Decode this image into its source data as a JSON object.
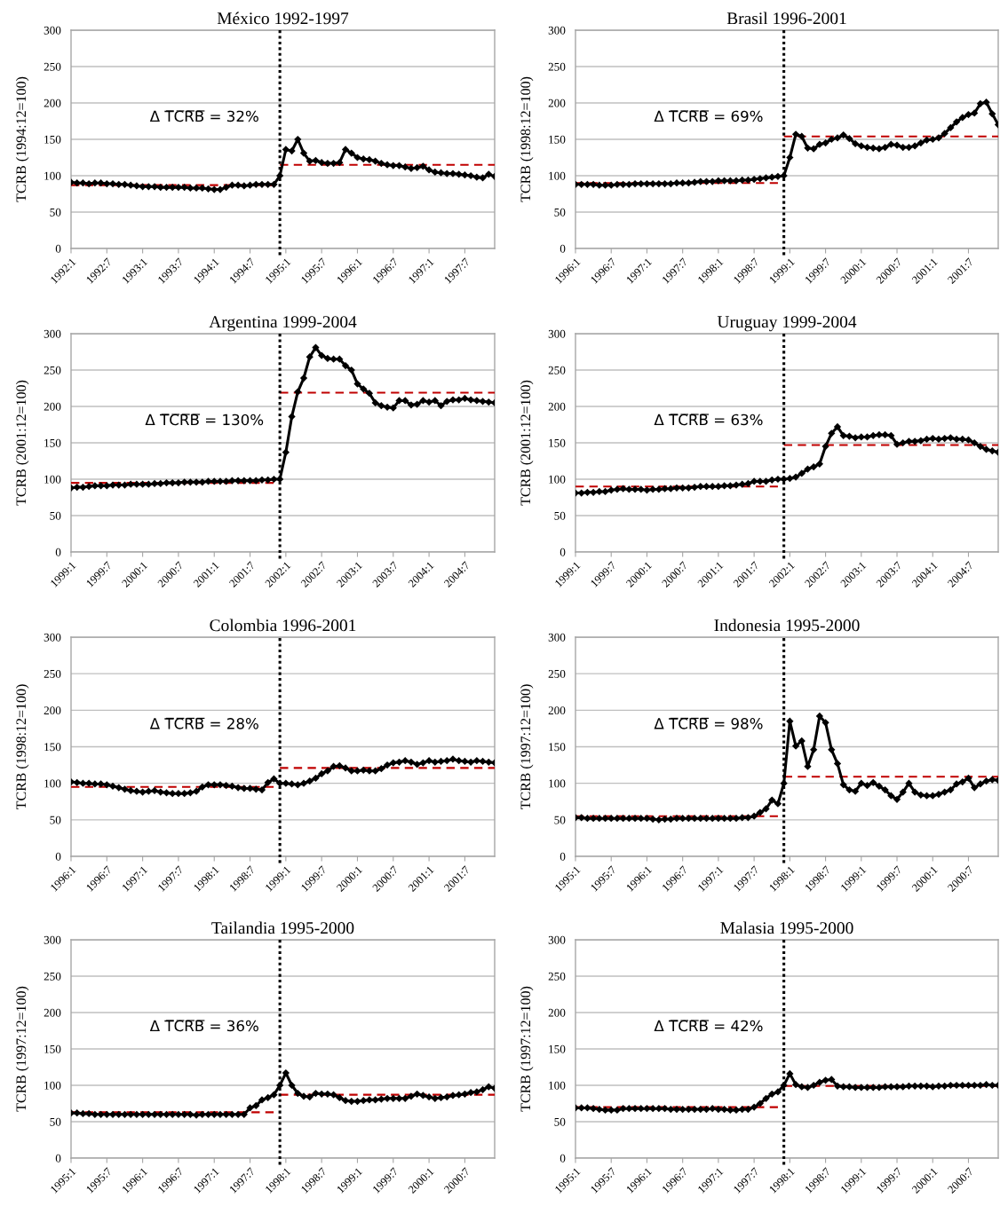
{
  "chart_data": [
    {
      "type": "line",
      "title": "México 1992-1997",
      "ylabel": "TCRB (1994:12=100)",
      "grid": "y",
      "ylim": [
        0,
        300
      ],
      "yticks": [
        0,
        50,
        100,
        150,
        200,
        250,
        300
      ],
      "xlim": [
        "1992-01",
        "1997-12"
      ],
      "xticks": [
        {
          "value": "1992-01",
          "label": "1992:1"
        },
        {
          "value": "1992-07",
          "label": "1992:7"
        },
        {
          "value": "1993-01",
          "label": "1993:1"
        },
        {
          "value": "1993-07",
          "label": "1993:7"
        },
        {
          "value": "1994-01",
          "label": "1994:1"
        },
        {
          "value": "1994-07",
          "label": "1994:7"
        },
        {
          "value": "1995-01",
          "label": "1995:1"
        },
        {
          "value": "1995-07",
          "label": "1995:7"
        },
        {
          "value": "1996-01",
          "label": "1996:1"
        },
        {
          "value": "1996-07",
          "label": "1996:7"
        },
        {
          "value": "1997-01",
          "label": "1997:1"
        },
        {
          "value": "1997-07",
          "label": "1997:7"
        }
      ],
      "x": [
        "1992-01",
        "1992-02",
        "1992-03",
        "1992-04",
        "1992-05",
        "1992-06",
        "1992-07",
        "1992-08",
        "1992-09",
        "1992-10",
        "1992-11",
        "1992-12",
        "1993-01",
        "1993-02",
        "1993-03",
        "1993-04",
        "1993-05",
        "1993-06",
        "1993-07",
        "1993-08",
        "1993-09",
        "1993-10",
        "1993-11",
        "1993-12",
        "1994-01",
        "1994-02",
        "1994-03",
        "1994-04",
        "1994-05",
        "1994-06",
        "1994-07",
        "1994-08",
        "1994-09",
        "1994-10",
        "1994-11",
        "1994-12",
        "1995-01",
        "1995-02",
        "1995-03",
        "1995-04",
        "1995-05",
        "1995-06",
        "1995-07",
        "1995-08",
        "1995-09",
        "1995-10",
        "1995-11",
        "1995-12",
        "1996-01",
        "1996-02",
        "1996-03",
        "1996-04",
        "1996-05",
        "1996-06",
        "1996-07",
        "1996-08",
        "1996-09",
        "1996-10",
        "1996-11",
        "1996-12",
        "1997-01",
        "1997-02",
        "1997-03",
        "1997-04",
        "1997-05",
        "1997-06",
        "1997-07",
        "1997-08",
        "1997-09",
        "1997-10",
        "1997-11",
        "1997-12"
      ],
      "series": [
        {
          "color": "#000000",
          "marker": "diamond",
          "line_style": "solid",
          "values": [
            91,
            90,
            90,
            89,
            90,
            90,
            89,
            89,
            88,
            88,
            87,
            86,
            85,
            85,
            85,
            84,
            84,
            84,
            84,
            84,
            83,
            83,
            83,
            82,
            81,
            81,
            84,
            87,
            87,
            86,
            87,
            88,
            88,
            88,
            88,
            100,
            136,
            134,
            150,
            131,
            120,
            121,
            118,
            117,
            117,
            118,
            136,
            131,
            125,
            123,
            122,
            120,
            117,
            115,
            114,
            114,
            112,
            110,
            111,
            113,
            108,
            105,
            104,
            103,
            103,
            102,
            101,
            100,
            98,
            97,
            102,
            99
          ]
        },
        {
          "color": "#c00000",
          "marker": "none",
          "line_style": "dashed",
          "x": [
            "1992-01",
            "1994-11"
          ],
          "values": [
            87,
            87
          ]
        },
        {
          "color": "#c00000",
          "marker": "none",
          "line_style": "dashed",
          "x": [
            "1994-12",
            "1997-12"
          ],
          "values": [
            115,
            115
          ]
        }
      ],
      "ref_lines": [
        {
          "axis": "x",
          "value": "1994-12",
          "color": "#000000",
          "line_style": "dotted"
        }
      ],
      "annotations": [
        "Δ T̅C̅R̅B̅ = 32%"
      ]
    },
    {
      "type": "line",
      "title": "Brasil 1996-2001",
      "ylabel": "TCRB (1998:12=100)",
      "grid": "y",
      "ylim": [
        0,
        300
      ],
      "yticks": [
        0,
        50,
        100,
        150,
        200,
        250,
        300
      ],
      "xlim": [
        "1996-01",
        "2001-12"
      ],
      "xticks": [
        {
          "value": "1996-01",
          "label": "1996:1"
        },
        {
          "value": "1996-07",
          "label": "1996:7"
        },
        {
          "value": "1997-01",
          "label": "1997:1"
        },
        {
          "value": "1997-07",
          "label": "1997:7"
        },
        {
          "value": "1998-01",
          "label": "1998:1"
        },
        {
          "value": "1998-07",
          "label": "1998:7"
        },
        {
          "value": "1999-01",
          "label": "1999:1"
        },
        {
          "value": "1999-07",
          "label": "1999:7"
        },
        {
          "value": "2000-01",
          "label": "2000:1"
        },
        {
          "value": "2000-07",
          "label": "2000:7"
        },
        {
          "value": "2001-01",
          "label": "2001:1"
        },
        {
          "value": "2001-07",
          "label": "2001:7"
        }
      ],
      "x": [
        "1996-01",
        "1996-02",
        "1996-03",
        "1996-04",
        "1996-05",
        "1996-06",
        "1996-07",
        "1996-08",
        "1996-09",
        "1996-10",
        "1996-11",
        "1996-12",
        "1997-01",
        "1997-02",
        "1997-03",
        "1997-04",
        "1997-05",
        "1997-06",
        "1997-07",
        "1997-08",
        "1997-09",
        "1997-10",
        "1997-11",
        "1997-12",
        "1998-01",
        "1998-02",
        "1998-03",
        "1998-04",
        "1998-05",
        "1998-06",
        "1998-07",
        "1998-08",
        "1998-09",
        "1998-10",
        "1998-11",
        "1998-12",
        "1999-01",
        "1999-02",
        "1999-03",
        "1999-04",
        "1999-05",
        "1999-06",
        "1999-07",
        "1999-08",
        "1999-09",
        "1999-10",
        "1999-11",
        "1999-12",
        "2000-01",
        "2000-02",
        "2000-03",
        "2000-04",
        "2000-05",
        "2000-06",
        "2000-07",
        "2000-08",
        "2000-09",
        "2000-10",
        "2000-11",
        "2000-12",
        "2001-01",
        "2001-02",
        "2001-03",
        "2001-04",
        "2001-05",
        "2001-06",
        "2001-07",
        "2001-08",
        "2001-09",
        "2001-10",
        "2001-11",
        "2001-12"
      ],
      "series": [
        {
          "color": "#000000",
          "marker": "diamond",
          "line_style": "solid",
          "values": [
            88,
            88,
            88,
            88,
            87,
            87,
            87,
            88,
            88,
            88,
            89,
            89,
            89,
            89,
            89,
            89,
            89,
            90,
            90,
            90,
            91,
            92,
            92,
            92,
            93,
            93,
            93,
            93,
            94,
            94,
            95,
            96,
            97,
            98,
            99,
            100,
            125,
            157,
            154,
            138,
            137,
            143,
            145,
            150,
            152,
            156,
            151,
            144,
            141,
            139,
            138,
            137,
            139,
            143,
            142,
            139,
            139,
            141,
            145,
            149,
            150,
            152,
            158,
            166,
            174,
            180,
            184,
            186,
            199,
            201,
            185,
            170
          ]
        },
        {
          "color": "#c00000",
          "marker": "none",
          "line_style": "dashed",
          "x": [
            "1996-01",
            "1998-11"
          ],
          "values": [
            90,
            90
          ]
        },
        {
          "color": "#c00000",
          "marker": "none",
          "line_style": "dashed",
          "x": [
            "1998-12",
            "2001-12"
          ],
          "values": [
            154,
            154
          ]
        }
      ],
      "ref_lines": [
        {
          "axis": "x",
          "value": "1998-12",
          "color": "#000000",
          "line_style": "dotted"
        }
      ],
      "annotations": [
        "Δ T̅C̅R̅B̅ = 69%"
      ]
    },
    {
      "type": "line",
      "title": "Argentina 1999-2004",
      "ylabel": "TCRB (2001:12=100)",
      "grid": "y",
      "ylim": [
        0,
        300
      ],
      "yticks": [
        0,
        50,
        100,
        150,
        200,
        250,
        300
      ],
      "xlim": [
        "1999-01",
        "2004-12"
      ],
      "xticks": [
        {
          "value": "1999-01",
          "label": "1999:1"
        },
        {
          "value": "1999-07",
          "label": "1999:7"
        },
        {
          "value": "2000-01",
          "label": "2000:1"
        },
        {
          "value": "2000-07",
          "label": "2000:7"
        },
        {
          "value": "2001-01",
          "label": "2001:1"
        },
        {
          "value": "2001-07",
          "label": "2001:7"
        },
        {
          "value": "2002-01",
          "label": "2002:1"
        },
        {
          "value": "2002-07",
          "label": "2002:7"
        },
        {
          "value": "2003-01",
          "label": "2003:1"
        },
        {
          "value": "2003-07",
          "label": "2003:7"
        },
        {
          "value": "2004-01",
          "label": "2004:1"
        },
        {
          "value": "2004-07",
          "label": "2004:7"
        }
      ],
      "x": [
        "1999-01",
        "1999-02",
        "1999-03",
        "1999-04",
        "1999-05",
        "1999-06",
        "1999-07",
        "1999-08",
        "1999-09",
        "1999-10",
        "1999-11",
        "1999-12",
        "2000-01",
        "2000-02",
        "2000-03",
        "2000-04",
        "2000-05",
        "2000-06",
        "2000-07",
        "2000-08",
        "2000-09",
        "2000-10",
        "2000-11",
        "2000-12",
        "2001-01",
        "2001-02",
        "2001-03",
        "2001-04",
        "2001-05",
        "2001-06",
        "2001-07",
        "2001-08",
        "2001-09",
        "2001-10",
        "2001-11",
        "2001-12",
        "2002-01",
        "2002-02",
        "2002-03",
        "2002-04",
        "2002-05",
        "2002-06",
        "2002-07",
        "2002-08",
        "2002-09",
        "2002-10",
        "2002-11",
        "2002-12",
        "2003-01",
        "2003-02",
        "2003-03",
        "2003-04",
        "2003-05",
        "2003-06",
        "2003-07",
        "2003-08",
        "2003-09",
        "2003-10",
        "2003-11",
        "2003-12",
        "2004-01",
        "2004-02",
        "2004-03",
        "2004-04",
        "2004-05",
        "2004-06",
        "2004-07",
        "2004-08",
        "2004-09",
        "2004-10",
        "2004-11",
        "2004-12"
      ],
      "series": [
        {
          "color": "#000000",
          "marker": "diamond",
          "line_style": "solid",
          "values": [
            88,
            89,
            89,
            90,
            91,
            91,
            91,
            92,
            92,
            92,
            93,
            93,
            93,
            93,
            94,
            94,
            95,
            95,
            95,
            96,
            96,
            96,
            96,
            97,
            97,
            97,
            97,
            98,
            98,
            98,
            98,
            98,
            99,
            99,
            100,
            100,
            137,
            186,
            220,
            239,
            268,
            281,
            270,
            266,
            265,
            265,
            256,
            250,
            231,
            224,
            218,
            205,
            201,
            199,
            198,
            208,
            208,
            202,
            203,
            208,
            206,
            208,
            201,
            207,
            209,
            209,
            211,
            209,
            208,
            207,
            206,
            205
          ]
        },
        {
          "color": "#c00000",
          "marker": "none",
          "line_style": "dashed",
          "x": [
            "1999-01",
            "2001-11"
          ],
          "values": [
            95,
            95
          ]
        },
        {
          "color": "#c00000",
          "marker": "none",
          "line_style": "dashed",
          "x": [
            "2001-12",
            "2004-12"
          ],
          "values": [
            219,
            219
          ]
        }
      ],
      "ref_lines": [
        {
          "axis": "x",
          "value": "2001-12",
          "color": "#000000",
          "line_style": "dotted"
        }
      ],
      "annotations": [
        "Δ T̅C̅R̅B̅ = 130%"
      ]
    },
    {
      "type": "line",
      "title": "Uruguay 1999-2004",
      "ylabel": "TCRB (2001:12=100)",
      "grid": "y",
      "ylim": [
        0,
        300
      ],
      "yticks": [
        0,
        50,
        100,
        150,
        200,
        250,
        300
      ],
      "xlim": [
        "1999-01",
        "2004-12"
      ],
      "xticks": [
        {
          "value": "1999-01",
          "label": "1999:1"
        },
        {
          "value": "1999-07",
          "label": "1999:7"
        },
        {
          "value": "2000-01",
          "label": "2000:1"
        },
        {
          "value": "2000-07",
          "label": "2000:7"
        },
        {
          "value": "2001-01",
          "label": "2001:1"
        },
        {
          "value": "2001-07",
          "label": "2001:7"
        },
        {
          "value": "2002-01",
          "label": "2002:1"
        },
        {
          "value": "2002-07",
          "label": "2002:7"
        },
        {
          "value": "2003-01",
          "label": "2003:1"
        },
        {
          "value": "2003-07",
          "label": "2003:7"
        },
        {
          "value": "2004-01",
          "label": "2004:1"
        },
        {
          "value": "2004-07",
          "label": "2004:7"
        }
      ],
      "x": [
        "1999-01",
        "1999-02",
        "1999-03",
        "1999-04",
        "1999-05",
        "1999-06",
        "1999-07",
        "1999-08",
        "1999-09",
        "1999-10",
        "1999-11",
        "1999-12",
        "2000-01",
        "2000-02",
        "2000-03",
        "2000-04",
        "2000-05",
        "2000-06",
        "2000-07",
        "2000-08",
        "2000-09",
        "2000-10",
        "2000-11",
        "2000-12",
        "2001-01",
        "2001-02",
        "2001-03",
        "2001-04",
        "2001-05",
        "2001-06",
        "2001-07",
        "2001-08",
        "2001-09",
        "2001-10",
        "2001-11",
        "2001-12",
        "2002-01",
        "2002-02",
        "2002-03",
        "2002-04",
        "2002-05",
        "2002-06",
        "2002-07",
        "2002-08",
        "2002-09",
        "2002-10",
        "2002-11",
        "2002-12",
        "2003-01",
        "2003-02",
        "2003-03",
        "2003-04",
        "2003-05",
        "2003-06",
        "2003-07",
        "2003-08",
        "2003-09",
        "2003-10",
        "2003-11",
        "2003-12",
        "2004-01",
        "2004-02",
        "2004-03",
        "2004-04",
        "2004-05",
        "2004-06",
        "2004-07",
        "2004-08",
        "2004-09",
        "2004-10",
        "2004-11",
        "2004-12"
      ],
      "series": [
        {
          "color": "#000000",
          "marker": "diamond",
          "line_style": "solid",
          "values": [
            81,
            81,
            82,
            82,
            83,
            83,
            85,
            86,
            87,
            86,
            86,
            86,
            85,
            86,
            86,
            87,
            87,
            88,
            88,
            88,
            89,
            90,
            90,
            90,
            90,
            91,
            91,
            92,
            93,
            94,
            97,
            97,
            97,
            99,
            100,
            100,
            101,
            103,
            108,
            114,
            117,
            121,
            145,
            163,
            172,
            160,
            159,
            157,
            158,
            158,
            160,
            161,
            161,
            160,
            148,
            150,
            152,
            152,
            153,
            155,
            156,
            155,
            156,
            157,
            155,
            155,
            154,
            150,
            145,
            141,
            139,
            137
          ]
        },
        {
          "color": "#c00000",
          "marker": "none",
          "line_style": "dashed",
          "x": [
            "1999-01",
            "2001-11"
          ],
          "values": [
            90,
            90
          ]
        },
        {
          "color": "#c00000",
          "marker": "none",
          "line_style": "dashed",
          "x": [
            "2001-12",
            "2004-12"
          ],
          "values": [
            147,
            147
          ]
        }
      ],
      "ref_lines": [
        {
          "axis": "x",
          "value": "2001-12",
          "color": "#000000",
          "line_style": "dotted"
        }
      ],
      "annotations": [
        "Δ T̅C̅R̅B̅ = 63%"
      ]
    },
    {
      "type": "line",
      "title": "Colombia 1996-2001",
      "ylabel": "TCRB (1998:12=100)",
      "grid": "y",
      "ylim": [
        0,
        300
      ],
      "yticks": [
        0,
        50,
        100,
        150,
        200,
        250,
        300
      ],
      "xlim": [
        "1996-01",
        "2001-12"
      ],
      "xticks": [
        {
          "value": "1996-01",
          "label": "1996:1"
        },
        {
          "value": "1996-07",
          "label": "1996:7"
        },
        {
          "value": "1997-01",
          "label": "1997:1"
        },
        {
          "value": "1997-07",
          "label": "1997:7"
        },
        {
          "value": "1998-01",
          "label": "1998:1"
        },
        {
          "value": "1998-07",
          "label": "1998:7"
        },
        {
          "value": "1999-01",
          "label": "1999:1"
        },
        {
          "value": "1999-07",
          "label": "1999:7"
        },
        {
          "value": "2000-01",
          "label": "2000:1"
        },
        {
          "value": "2000-07",
          "label": "2000:7"
        },
        {
          "value": "2001-01",
          "label": "2001:1"
        },
        {
          "value": "2001-07",
          "label": "2001:7"
        }
      ],
      "x": [
        "1996-01",
        "1996-02",
        "1996-03",
        "1996-04",
        "1996-05",
        "1996-06",
        "1996-07",
        "1996-08",
        "1996-09",
        "1996-10",
        "1996-11",
        "1996-12",
        "1997-01",
        "1997-02",
        "1997-03",
        "1997-04",
        "1997-05",
        "1997-06",
        "1997-07",
        "1997-08",
        "1997-09",
        "1997-10",
        "1997-11",
        "1997-12",
        "1998-01",
        "1998-02",
        "1998-03",
        "1998-04",
        "1998-05",
        "1998-06",
        "1998-07",
        "1998-08",
        "1998-09",
        "1998-10",
        "1998-11",
        "1998-12",
        "1999-01",
        "1999-02",
        "1999-03",
        "1999-04",
        "1999-05",
        "1999-06",
        "1999-07",
        "1999-08",
        "1999-09",
        "1999-10",
        "1999-11",
        "1999-12",
        "2000-01",
        "2000-02",
        "2000-03",
        "2000-04",
        "2000-05",
        "2000-06",
        "2000-07",
        "2000-08",
        "2000-09",
        "2000-10",
        "2000-11",
        "2000-12",
        "2001-01",
        "2001-02",
        "2001-03",
        "2001-04",
        "2001-05",
        "2001-06",
        "2001-07",
        "2001-08",
        "2001-09",
        "2001-10",
        "2001-11",
        "2001-12"
      ],
      "series": [
        {
          "color": "#000000",
          "marker": "diamond",
          "line_style": "solid",
          "values": [
            102,
            101,
            100,
            100,
            99,
            99,
            98,
            96,
            94,
            92,
            90,
            89,
            88,
            89,
            90,
            88,
            87,
            86,
            86,
            86,
            87,
            89,
            95,
            98,
            98,
            98,
            97,
            96,
            94,
            93,
            93,
            92,
            91,
            101,
            106,
            100,
            100,
            99,
            98,
            100,
            103,
            107,
            113,
            117,
            123,
            124,
            121,
            117,
            117,
            118,
            117,
            117,
            120,
            125,
            128,
            129,
            131,
            129,
            126,
            128,
            131,
            129,
            130,
            131,
            133,
            131,
            130,
            129,
            131,
            130,
            129,
            128
          ]
        },
        {
          "color": "#c00000",
          "marker": "none",
          "line_style": "dashed",
          "x": [
            "1996-01",
            "1998-11"
          ],
          "values": [
            95,
            95
          ]
        },
        {
          "color": "#c00000",
          "marker": "none",
          "line_style": "dashed",
          "x": [
            "1998-12",
            "2001-12"
          ],
          "values": [
            121,
            121
          ]
        }
      ],
      "ref_lines": [
        {
          "axis": "x",
          "value": "1998-12",
          "color": "#000000",
          "line_style": "dotted"
        }
      ],
      "annotations": [
        "Δ T̅C̅R̅B̅ = 28%"
      ]
    },
    {
      "type": "line",
      "title": "Indonesia 1995-2000",
      "ylabel": "TCRB (1997:12=100)",
      "grid": "y",
      "ylim": [
        0,
        300
      ],
      "yticks": [
        0,
        50,
        100,
        150,
        200,
        250,
        300
      ],
      "xlim": [
        "1995-01",
        "2000-12"
      ],
      "xticks": [
        {
          "value": "1995-01",
          "label": "1995:1"
        },
        {
          "value": "1995-07",
          "label": "1995:7"
        },
        {
          "value": "1996-01",
          "label": "1996:1"
        },
        {
          "value": "1996-07",
          "label": "1996:7"
        },
        {
          "value": "1997-01",
          "label": "1997:1"
        },
        {
          "value": "1997-07",
          "label": "1997:7"
        },
        {
          "value": "1998-01",
          "label": "1998:1"
        },
        {
          "value": "1998-07",
          "label": "1998:7"
        },
        {
          "value": "1999-01",
          "label": "1999:1"
        },
        {
          "value": "1999-07",
          "label": "1999:7"
        },
        {
          "value": "2000-01",
          "label": "2000:1"
        },
        {
          "value": "2000-07",
          "label": "2000:7"
        }
      ],
      "x": [
        "1995-01",
        "1995-02",
        "1995-03",
        "1995-04",
        "1995-05",
        "1995-06",
        "1995-07",
        "1995-08",
        "1995-09",
        "1995-10",
        "1995-11",
        "1995-12",
        "1996-01",
        "1996-02",
        "1996-03",
        "1996-04",
        "1996-05",
        "1996-06",
        "1996-07",
        "1996-08",
        "1996-09",
        "1996-10",
        "1996-11",
        "1996-12",
        "1997-01",
        "1997-02",
        "1997-03",
        "1997-04",
        "1997-05",
        "1997-06",
        "1997-07",
        "1997-08",
        "1997-09",
        "1997-10",
        "1997-11",
        "1997-12",
        "1998-01",
        "1998-02",
        "1998-03",
        "1998-04",
        "1998-05",
        "1998-06",
        "1998-07",
        "1998-08",
        "1998-09",
        "1998-10",
        "1998-11",
        "1998-12",
        "1999-01",
        "1999-02",
        "1999-03",
        "1999-04",
        "1999-05",
        "1999-06",
        "1999-07",
        "1999-08",
        "1999-09",
        "1999-10",
        "1999-11",
        "1999-12",
        "2000-01",
        "2000-02",
        "2000-03",
        "2000-04",
        "2000-05",
        "2000-06",
        "2000-07",
        "2000-08",
        "2000-09",
        "2000-10",
        "2000-11",
        "2000-12"
      ],
      "series": [
        {
          "color": "#000000",
          "marker": "diamond",
          "line_style": "solid",
          "values": [
            53,
            53,
            52,
            52,
            52,
            52,
            52,
            52,
            52,
            52,
            52,
            52,
            52,
            51,
            50,
            51,
            51,
            52,
            52,
            52,
            52,
            52,
            52,
            52,
            52,
            52,
            52,
            52,
            53,
            53,
            55,
            60,
            65,
            77,
            72,
            100,
            185,
            151,
            158,
            123,
            146,
            192,
            183,
            146,
            127,
            98,
            91,
            89,
            100,
            97,
            101,
            96,
            91,
            83,
            78,
            88,
            100,
            88,
            84,
            83,
            83,
            85,
            88,
            91,
            99,
            102,
            107,
            94,
            99,
            103,
            105,
            104
          ]
        },
        {
          "color": "#c00000",
          "marker": "none",
          "line_style": "dashed",
          "x": [
            "1995-01",
            "1997-11"
          ],
          "values": [
            55,
            55
          ]
        },
        {
          "color": "#c00000",
          "marker": "none",
          "line_style": "dashed",
          "x": [
            "1997-12",
            "2000-12"
          ],
          "values": [
            109,
            109
          ]
        }
      ],
      "ref_lines": [
        {
          "axis": "x",
          "value": "1997-12",
          "color": "#000000",
          "line_style": "dotted"
        }
      ],
      "annotations": [
        "Δ T̅C̅R̅B̅ = 98%"
      ]
    },
    {
      "type": "line",
      "title": "Tailandia 1995-2000",
      "ylabel": "TCRB (1997:12=100)",
      "grid": "y",
      "ylim": [
        0,
        300
      ],
      "yticks": [
        0,
        50,
        100,
        150,
        200,
        250,
        300
      ],
      "xlim": [
        "1995-01",
        "2000-12"
      ],
      "xticks": [
        {
          "value": "1995-01",
          "label": "1995:1"
        },
        {
          "value": "1995-07",
          "label": "1995:7"
        },
        {
          "value": "1996-01",
          "label": "1996:1"
        },
        {
          "value": "1996-07",
          "label": "1996:7"
        },
        {
          "value": "1997-01",
          "label": "1997:1"
        },
        {
          "value": "1997-07",
          "label": "1997:7"
        },
        {
          "value": "1998-01",
          "label": "1998:1"
        },
        {
          "value": "1998-07",
          "label": "1998:7"
        },
        {
          "value": "1999-01",
          "label": "1999:1"
        },
        {
          "value": "1999-07",
          "label": "1999:7"
        },
        {
          "value": "2000-01",
          "label": "2000:1"
        },
        {
          "value": "2000-07",
          "label": "2000:7"
        }
      ],
      "x": [
        "1995-01",
        "1995-02",
        "1995-03",
        "1995-04",
        "1995-05",
        "1995-06",
        "1995-07",
        "1995-08",
        "1995-09",
        "1995-10",
        "1995-11",
        "1995-12",
        "1996-01",
        "1996-02",
        "1996-03",
        "1996-04",
        "1996-05",
        "1996-06",
        "1996-07",
        "1996-08",
        "1996-09",
        "1996-10",
        "1996-11",
        "1996-12",
        "1997-01",
        "1997-02",
        "1997-03",
        "1997-04",
        "1997-05",
        "1997-06",
        "1997-07",
        "1997-08",
        "1997-09",
        "1997-10",
        "1997-11",
        "1997-12",
        "1998-01",
        "1998-02",
        "1998-03",
        "1998-04",
        "1998-05",
        "1998-06",
        "1998-07",
        "1998-08",
        "1998-09",
        "1998-10",
        "1998-11",
        "1998-12",
        "1999-01",
        "1999-02",
        "1999-03",
        "1999-04",
        "1999-05",
        "1999-06",
        "1999-07",
        "1999-08",
        "1999-09",
        "1999-10",
        "1999-11",
        "1999-12",
        "2000-01",
        "2000-02",
        "2000-03",
        "2000-04",
        "2000-05",
        "2000-06",
        "2000-07",
        "2000-08",
        "2000-09",
        "2000-10",
        "2000-11",
        "2000-12"
      ],
      "series": [
        {
          "color": "#000000",
          "marker": "diamond",
          "line_style": "solid",
          "values": [
            62,
            62,
            61,
            61,
            60,
            60,
            60,
            60,
            60,
            60,
            60,
            60,
            60,
            60,
            60,
            60,
            60,
            60,
            60,
            60,
            60,
            59,
            60,
            60,
            60,
            60,
            60,
            60,
            60,
            60,
            69,
            72,
            80,
            83,
            87,
            100,
            117,
            100,
            89,
            85,
            84,
            89,
            88,
            88,
            87,
            83,
            79,
            78,
            78,
            79,
            80,
            80,
            81,
            82,
            82,
            82,
            82,
            85,
            88,
            86,
            84,
            82,
            83,
            84,
            86,
            87,
            88,
            90,
            91,
            94,
            98,
            96
          ]
        },
        {
          "color": "#c00000",
          "marker": "none",
          "line_style": "dashed",
          "x": [
            "1995-01",
            "1997-11"
          ],
          "values": [
            63,
            63
          ]
        },
        {
          "color": "#c00000",
          "marker": "none",
          "line_style": "dashed",
          "x": [
            "1997-12",
            "2000-12"
          ],
          "values": [
            87,
            87
          ]
        }
      ],
      "ref_lines": [
        {
          "axis": "x",
          "value": "1997-12",
          "color": "#000000",
          "line_style": "dotted"
        }
      ],
      "annotations": [
        "Δ T̅C̅R̅B̅ = 36%"
      ]
    },
    {
      "type": "line",
      "title": "Malasia 1995-2000",
      "ylabel": "TCRB (1997:12=100)",
      "grid": "y",
      "ylim": [
        0,
        300
      ],
      "yticks": [
        0,
        50,
        100,
        150,
        200,
        250,
        300
      ],
      "xlim": [
        "1995-01",
        "2000-12"
      ],
      "xticks": [
        {
          "value": "1995-01",
          "label": "1995:1"
        },
        {
          "value": "1995-07",
          "label": "1995:7"
        },
        {
          "value": "1996-01",
          "label": "1996:1"
        },
        {
          "value": "1996-07",
          "label": "1996:7"
        },
        {
          "value": "1997-01",
          "label": "1997:1"
        },
        {
          "value": "1997-07",
          "label": "1997:7"
        },
        {
          "value": "1998-01",
          "label": "1998:1"
        },
        {
          "value": "1998-07",
          "label": "1998:7"
        },
        {
          "value": "1999-01",
          "label": "1999:1"
        },
        {
          "value": "1999-07",
          "label": "1999:7"
        },
        {
          "value": "2000-01",
          "label": "2000:1"
        },
        {
          "value": "2000-07",
          "label": "2000:7"
        }
      ],
      "x": [
        "1995-01",
        "1995-02",
        "1995-03",
        "1995-04",
        "1995-05",
        "1995-06",
        "1995-07",
        "1995-08",
        "1995-09",
        "1995-10",
        "1995-11",
        "1995-12",
        "1996-01",
        "1996-02",
        "1996-03",
        "1996-04",
        "1996-05",
        "1996-06",
        "1996-07",
        "1996-08",
        "1996-09",
        "1996-10",
        "1996-11",
        "1996-12",
        "1997-01",
        "1997-02",
        "1997-03",
        "1997-04",
        "1997-05",
        "1997-06",
        "1997-07",
        "1997-08",
        "1997-09",
        "1997-10",
        "1997-11",
        "1997-12",
        "1998-01",
        "1998-02",
        "1998-03",
        "1998-04",
        "1998-05",
        "1998-06",
        "1998-07",
        "1998-08",
        "1998-09",
        "1998-10",
        "1998-11",
        "1998-12",
        "1999-01",
        "1999-02",
        "1999-03",
        "1999-04",
        "1999-05",
        "1999-06",
        "1999-07",
        "1999-08",
        "1999-09",
        "1999-10",
        "1999-11",
        "1999-12",
        "2000-01",
        "2000-02",
        "2000-03",
        "2000-04",
        "2000-05",
        "2000-06",
        "2000-07",
        "2000-08",
        "2000-09",
        "2000-10",
        "2000-11",
        "2000-12"
      ],
      "series": [
        {
          "color": "#000000",
          "marker": "diamond",
          "line_style": "solid",
          "values": [
            69,
            69,
            69,
            68,
            67,
            66,
            66,
            66,
            68,
            68,
            68,
            68,
            68,
            68,
            68,
            68,
            67,
            67,
            67,
            67,
            67,
            67,
            67,
            68,
            67,
            67,
            66,
            66,
            67,
            67,
            70,
            75,
            82,
            88,
            91,
            100,
            116,
            101,
            98,
            97,
            100,
            104,
            107,
            108,
            99,
            98,
            98,
            97,
            97,
            97,
            97,
            97,
            98,
            98,
            98,
            98,
            99,
            99,
            99,
            99,
            98,
            99,
            99,
            100,
            100,
            100,
            100,
            100,
            100,
            101,
            100,
            100
          ]
        },
        {
          "color": "#c00000",
          "marker": "none",
          "line_style": "dashed",
          "x": [
            "1995-01",
            "1997-11"
          ],
          "values": [
            70,
            70
          ]
        },
        {
          "color": "#c00000",
          "marker": "none",
          "line_style": "dashed",
          "x": [
            "1997-12",
            "2000-12"
          ],
          "values": [
            99,
            99
          ]
        }
      ],
      "ref_lines": [
        {
          "axis": "x",
          "value": "1997-12",
          "color": "#000000",
          "line_style": "dotted"
        }
      ],
      "annotations": [
        "Δ T̅C̅R̅B̅ = 42%"
      ]
    }
  ]
}
